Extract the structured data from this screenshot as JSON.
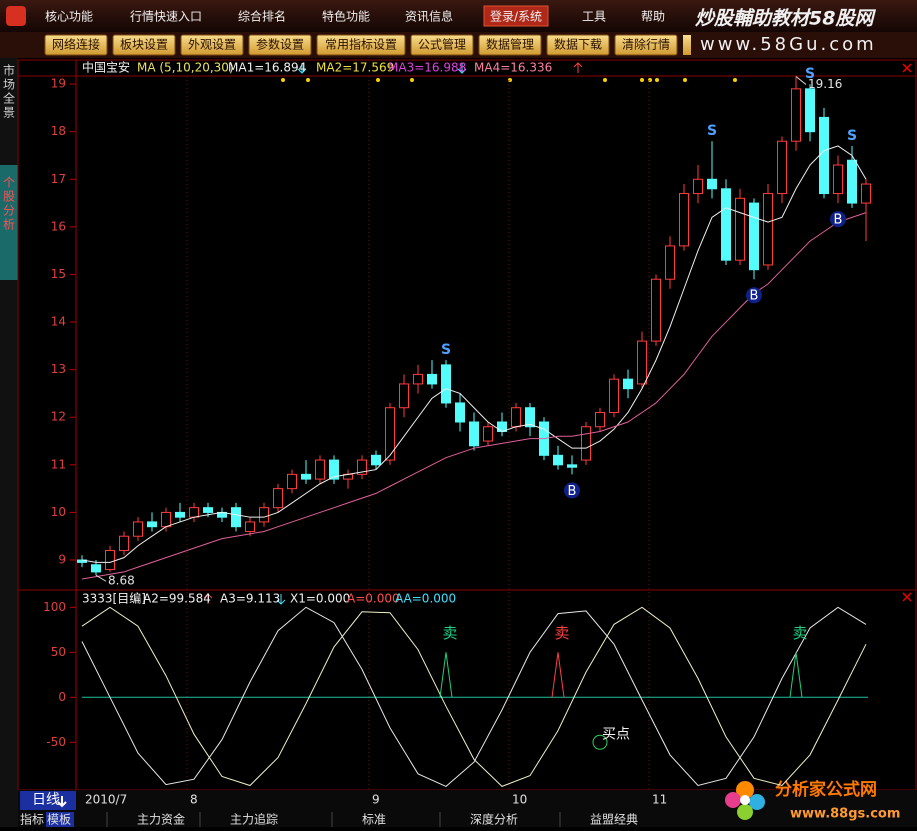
{
  "menu": {
    "items": [
      "核心功能",
      "行情快速入口",
      "综合排名",
      "特色功能",
      "资讯信息",
      "登录/系统",
      "工具",
      "帮助"
    ]
  },
  "toolbar": {
    "buttons": [
      "网络连接",
      "板块设置",
      "外观设置",
      "参数设置",
      "常用指标设置",
      "公式管理",
      "数据管理",
      "数据下载",
      "清除行情"
    ]
  },
  "watermark": {
    "top_title": "炒股輔助教材58股网",
    "top_url": "www.58Gu.com",
    "bottom_title": "分析家公式网",
    "bottom_url": "www.88gs.com"
  },
  "sidebar": {
    "tabs": [
      "市场全景",
      "个股分析"
    ]
  },
  "price_chart": {
    "type": "candlestick",
    "stock": "中国宝安",
    "ma_header": "MA (5,10,20,30)",
    "ma_readouts": [
      "MA1=16.894",
      "MA2=17.569",
      "MA3=16.988",
      "MA4=16.336"
    ],
    "ylim": [
      8.37,
      19.17
    ],
    "yticks": [
      9,
      10,
      11,
      12,
      13,
      14,
      15,
      16,
      17,
      18,
      19
    ],
    "up_color": "#ff3c3c",
    "down_color": "#54fcfc",
    "candles": [
      [
        9.0,
        9.1,
        8.85,
        8.95
      ],
      [
        8.9,
        9.0,
        8.68,
        8.75
      ],
      [
        8.8,
        9.3,
        8.75,
        9.2
      ],
      [
        9.2,
        9.6,
        9.1,
        9.5
      ],
      [
        9.5,
        9.9,
        9.4,
        9.8
      ],
      [
        9.8,
        10.0,
        9.6,
        9.7
      ],
      [
        9.7,
        10.1,
        9.6,
        10.0
      ],
      [
        10.0,
        10.2,
        9.8,
        9.9
      ],
      [
        9.9,
        10.2,
        9.8,
        10.1
      ],
      [
        10.1,
        10.2,
        9.9,
        10.0
      ],
      [
        10.0,
        10.1,
        9.8,
        9.9
      ],
      [
        10.1,
        10.2,
        9.6,
        9.7
      ],
      [
        9.6,
        9.9,
        9.5,
        9.8
      ],
      [
        9.8,
        10.2,
        9.7,
        10.1
      ],
      [
        10.1,
        10.6,
        10.0,
        10.5
      ],
      [
        10.5,
        10.9,
        10.4,
        10.8
      ],
      [
        10.8,
        11.1,
        10.6,
        10.7
      ],
      [
        10.7,
        11.2,
        10.6,
        11.1
      ],
      [
        11.1,
        11.2,
        10.6,
        10.7
      ],
      [
        10.7,
        10.9,
        10.5,
        10.8
      ],
      [
        10.8,
        11.2,
        10.7,
        11.1
      ],
      [
        11.2,
        11.3,
        10.9,
        11.0
      ],
      [
        11.1,
        12.3,
        11.0,
        12.2
      ],
      [
        12.2,
        12.9,
        12.0,
        12.7
      ],
      [
        12.7,
        13.1,
        12.5,
        12.9
      ],
      [
        12.9,
        13.2,
        12.6,
        12.7
      ],
      [
        13.1,
        13.2,
        12.2,
        12.3
      ],
      [
        12.3,
        12.5,
        11.7,
        11.9
      ],
      [
        11.9,
        12.1,
        11.3,
        11.4
      ],
      [
        11.5,
        11.9,
        11.4,
        11.8
      ],
      [
        11.9,
        12.1,
        11.6,
        11.7
      ],
      [
        11.8,
        12.3,
        11.7,
        12.2
      ],
      [
        12.2,
        12.3,
        11.6,
        11.8
      ],
      [
        11.9,
        12.0,
        11.1,
        11.2
      ],
      [
        11.2,
        11.4,
        10.9,
        11.0
      ],
      [
        11.0,
        11.2,
        10.8,
        10.95
      ],
      [
        11.1,
        11.9,
        11.0,
        11.8
      ],
      [
        11.8,
        12.2,
        11.7,
        12.1
      ],
      [
        12.1,
        12.9,
        12.0,
        12.8
      ],
      [
        12.8,
        13.0,
        12.4,
        12.6
      ],
      [
        12.7,
        13.8,
        12.6,
        13.6
      ],
      [
        13.6,
        15.0,
        13.5,
        14.9
      ],
      [
        14.9,
        15.8,
        14.7,
        15.6
      ],
      [
        15.6,
        16.9,
        15.5,
        16.7
      ],
      [
        16.7,
        17.3,
        16.5,
        17.0
      ],
      [
        17.0,
        17.8,
        16.6,
        16.8
      ],
      [
        16.8,
        17.0,
        15.2,
        15.3
      ],
      [
        15.3,
        16.8,
        15.2,
        16.6
      ],
      [
        16.5,
        16.6,
        14.9,
        15.1
      ],
      [
        15.2,
        16.9,
        15.1,
        16.7
      ],
      [
        16.7,
        17.9,
        16.5,
        17.8
      ],
      [
        17.8,
        19.16,
        17.6,
        18.9
      ],
      [
        18.9,
        19.0,
        17.8,
        18.0
      ],
      [
        18.3,
        18.5,
        16.6,
        16.7
      ],
      [
        16.7,
        17.5,
        16.5,
        17.3
      ],
      [
        17.4,
        17.7,
        16.4,
        16.5
      ],
      [
        16.5,
        17.0,
        15.7,
        16.9
      ]
    ],
    "ma": [
      {
        "color": "#f0f0f0",
        "values": [
          9.0,
          8.95,
          8.95,
          9.05,
          9.3,
          9.5,
          9.7,
          9.8,
          9.9,
          9.95,
          10.0,
          9.95,
          9.9,
          9.9,
          10.0,
          10.2,
          10.4,
          10.6,
          10.75,
          10.8,
          10.85,
          10.9,
          11.2,
          11.6,
          12.0,
          12.4,
          12.6,
          12.5,
          12.2,
          11.9,
          11.7,
          11.8,
          11.85,
          11.75,
          11.55,
          11.35,
          11.35,
          11.5,
          11.75,
          12.1,
          12.6,
          13.2,
          13.9,
          14.7,
          15.5,
          16.2,
          16.4,
          16.3,
          16.2,
          16.1,
          16.2,
          16.8,
          17.3,
          17.6,
          17.7,
          17.5,
          17.0
        ]
      },
      {
        "color": "#e0609a",
        "values": [
          8.6,
          8.65,
          8.7,
          8.75,
          8.85,
          8.95,
          9.05,
          9.15,
          9.25,
          9.35,
          9.45,
          9.5,
          9.55,
          9.6,
          9.7,
          9.8,
          9.9,
          10.0,
          10.1,
          10.2,
          10.3,
          10.4,
          10.55,
          10.7,
          10.85,
          11.0,
          11.15,
          11.25,
          11.35,
          11.4,
          11.45,
          11.5,
          11.55,
          11.55,
          11.6,
          11.6,
          11.65,
          11.7,
          11.8,
          11.9,
          12.1,
          12.3,
          12.6,
          12.9,
          13.3,
          13.7,
          14.0,
          14.3,
          14.6,
          14.8,
          15.1,
          15.4,
          15.7,
          15.9,
          16.1,
          16.2,
          16.3
        ]
      }
    ],
    "signals": [
      {
        "label": "S",
        "candle": 26
      },
      {
        "label": "S",
        "candle": 45
      },
      {
        "label": "S",
        "candle": 52
      },
      {
        "label": "S",
        "candle": 55
      },
      {
        "label": "B",
        "candle": 35
      },
      {
        "label": "B",
        "candle": 48
      },
      {
        "label": "B",
        "candle": 54
      }
    ],
    "peaks": [
      {
        "candle": 51,
        "price": 19.16
      },
      {
        "candle": 1,
        "price": 8.68
      }
    ],
    "dates": [
      {
        "label": "2010/7",
        "candle": 0
      },
      {
        "label": "8",
        "candle": 8
      },
      {
        "label": "9",
        "candle": 21
      },
      {
        "label": "10",
        "candle": 31
      },
      {
        "label": "11",
        "candle": 41
      }
    ]
  },
  "indicator": {
    "type": "line",
    "readouts": [
      "3333[目编]",
      "A2=99.584",
      "A3=9.113",
      "X1=0.000",
      "A=0.000",
      "AA=0.000"
    ],
    "ylim": [
      -103,
      117
    ],
    "yticks": [
      100,
      50,
      0,
      -50
    ],
    "series": [
      {
        "color": "#f0f0c8",
        "values": [
          79,
          100,
          79,
          24,
          -41,
          -88,
          -98,
          -67,
          -7,
          56,
          95,
          94,
          53,
          -10,
          -69,
          -99,
          -87,
          -37,
          28,
          81,
          100,
          77,
          21,
          -44,
          -90,
          -98,
          -64,
          -3,
          59
        ]
      },
      {
        "color": "#e8e8e8",
        "values": [
          62,
          0,
          -62,
          -97,
          -91,
          -47,
          17,
          74,
          100,
          83,
          31,
          -34,
          -85,
          -99,
          -72,
          -14,
          50,
          93,
          96,
          59,
          -3,
          -64,
          -98,
          -90,
          -44,
          21,
          77,
          100,
          81
        ]
      }
    ],
    "zero_color": "#20c0a0",
    "spikes": [
      {
        "label": "卖",
        "candle": 26,
        "value": 50,
        "color": "#20d080"
      },
      {
        "label": "卖",
        "candle": 34,
        "value": 50,
        "color": "#ff4040"
      },
      {
        "label": "卖",
        "candle": 51,
        "value": 50,
        "color": "#20d080"
      }
    ],
    "buy_point": {
      "label": "买点",
      "candle": 37,
      "value": -50
    }
  },
  "footer": {
    "period": "日线",
    "tabs": [
      "指标",
      "模板"
    ],
    "panels": [
      "主力资金",
      "主力追踪",
      "标准",
      "深度分析",
      "益盟经典"
    ]
  }
}
